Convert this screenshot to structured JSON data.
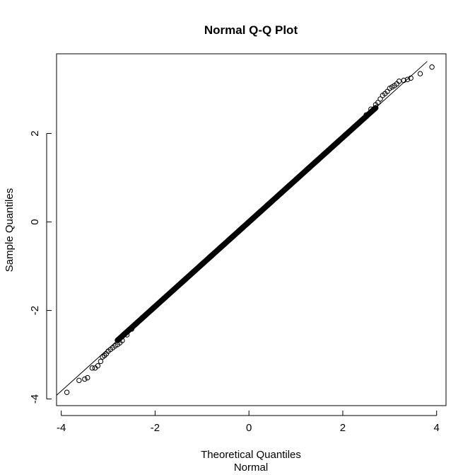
{
  "chart_data": {
    "type": "scatter",
    "title": "Normal Q-Q Plot",
    "xlabel": "Theoretical Quantiles",
    "xsublabel": "Normal",
    "ylabel": "Sample Quantiles",
    "xlim": [
      -4.1,
      4.2
    ],
    "ylim": [
      -4.15,
      3.8
    ],
    "xticks": [
      -4,
      -2,
      0,
      2,
      4
    ],
    "xtick_labels": [
      "-4",
      "-2",
      "0",
      "2",
      "4"
    ],
    "yticks": [
      -4,
      -2,
      0,
      2
    ],
    "ytick_labels": [
      "-4",
      "-2",
      "0",
      "2"
    ],
    "grid": false,
    "legend": "none",
    "reference_line": {
      "slope": 0.955,
      "intercept": 0.0
    },
    "colors": {
      "points": "#000000",
      "line": "#000000",
      "frame": "#000000"
    },
    "series": [
      {
        "x": [
          -3.88,
          -3.62,
          -3.5,
          -3.44,
          -3.34,
          -3.28,
          -3.22,
          -3.16,
          -3.12,
          -3.08,
          -3.04,
          -3.0,
          -2.95,
          -2.9,
          -2.85,
          -2.8,
          -2.75,
          -2.7,
          -2.6,
          -2.5,
          -2.4,
          -2.3,
          -2.2,
          -2.1,
          -2.0,
          -1.9,
          -1.8,
          -1.7,
          -1.6,
          -1.5,
          -1.4,
          -1.3,
          -1.2,
          -1.1,
          -1.0,
          -0.9,
          -0.8,
          -0.7,
          -0.6,
          -0.5,
          -0.4,
          -0.3,
          -0.2,
          -0.1,
          0.0,
          0.1,
          0.2,
          0.3,
          0.4,
          0.5,
          0.6,
          0.7,
          0.8,
          0.9,
          1.0,
          1.1,
          1.2,
          1.3,
          1.4,
          1.5,
          1.6,
          1.7,
          1.8,
          1.9,
          2.0,
          2.1,
          2.2,
          2.3,
          2.4,
          2.5,
          2.6,
          2.7,
          2.75,
          2.8,
          2.85,
          2.9,
          2.95,
          3.0,
          3.05,
          3.1,
          3.15,
          3.2,
          3.3,
          3.38,
          3.45,
          3.65,
          3.9
        ],
        "y": [
          -3.85,
          -3.58,
          -3.55,
          -3.52,
          -3.3,
          -3.3,
          -3.25,
          -3.15,
          -3.05,
          -3.02,
          -2.98,
          -2.92,
          -2.88,
          -2.84,
          -2.8,
          -2.77,
          -2.73,
          -2.68,
          -2.55,
          -2.42,
          -2.3,
          -2.2,
          -2.1,
          -2.0,
          -1.91,
          -1.81,
          -1.72,
          -1.62,
          -1.53,
          -1.43,
          -1.34,
          -1.24,
          -1.15,
          -1.05,
          -0.96,
          -0.86,
          -0.76,
          -0.67,
          -0.57,
          -0.48,
          -0.38,
          -0.29,
          -0.19,
          -0.1,
          0.0,
          0.1,
          0.19,
          0.29,
          0.38,
          0.48,
          0.57,
          0.67,
          0.76,
          0.86,
          0.96,
          1.05,
          1.15,
          1.24,
          1.34,
          1.43,
          1.53,
          1.62,
          1.72,
          1.81,
          1.91,
          2.0,
          2.1,
          2.2,
          2.3,
          2.42,
          2.55,
          2.65,
          2.7,
          2.78,
          2.86,
          2.9,
          2.95,
          3.02,
          3.05,
          3.08,
          3.12,
          3.18,
          3.2,
          3.22,
          3.25,
          3.35,
          3.5
        ]
      }
    ]
  }
}
